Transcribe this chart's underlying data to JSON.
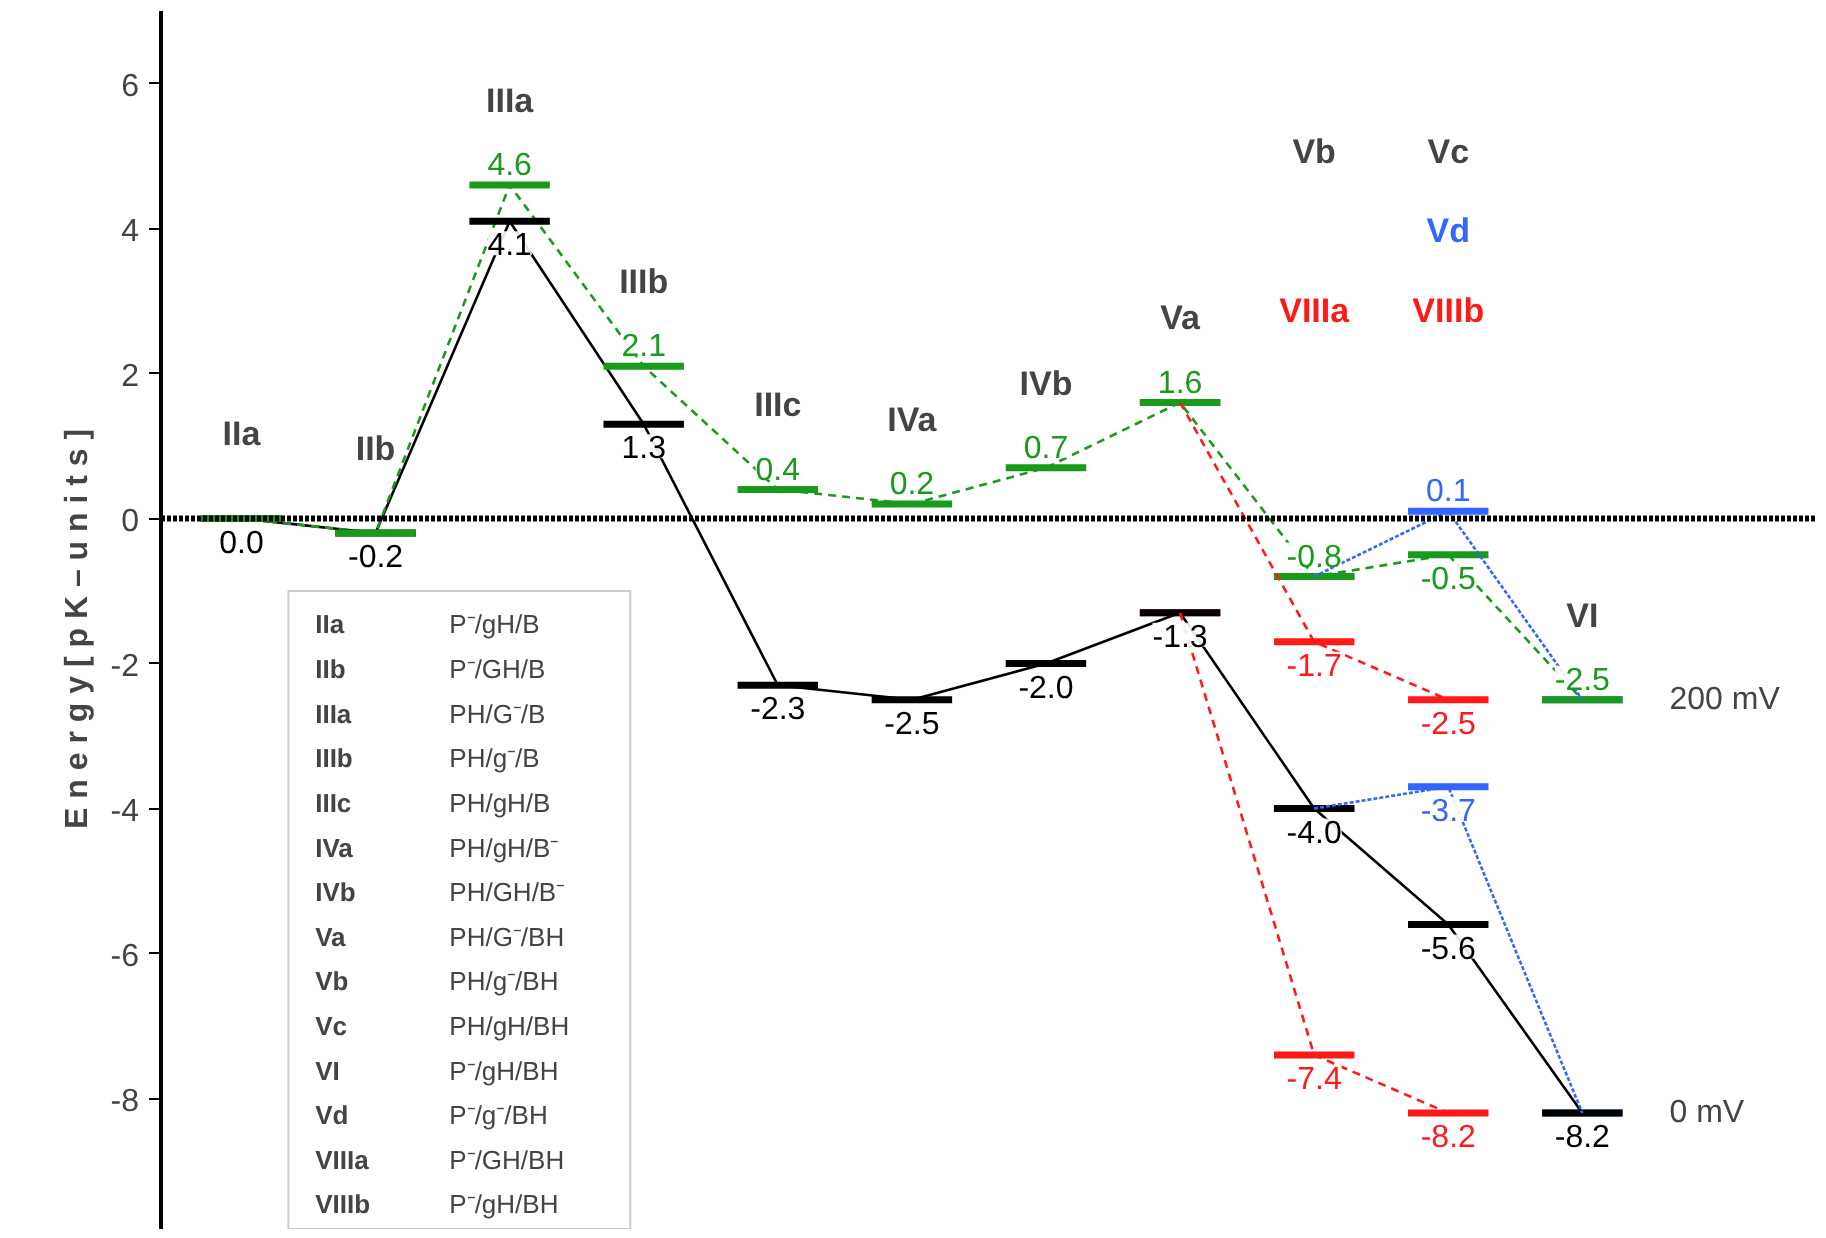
{
  "chart_data": {
    "type": "line",
    "ylabel": "E n e r g y   [ p K – u n i t s ]",
    "categories": [
      "IIa",
      "IIb",
      "IIIa",
      "IIIb",
      "IIIc",
      "IVa",
      "IVb",
      "Va",
      "Vb",
      "Vc",
      "VI"
    ],
    "series": [
      {
        "name": "200 mV",
        "color": "#1a9a1a",
        "line_style": "dashed",
        "values": [
          0.0,
          -0.2,
          4.6,
          2.1,
          0.4,
          0.2,
          0.7,
          1.6,
          -0.8,
          -0.5,
          -2.5
        ],
        "value_labels": [
          null,
          null,
          "4.6",
          "2.1",
          "0.4",
          "0.2",
          "0.7",
          "1.6",
          "-0.8",
          "-0.5",
          "-2.5"
        ]
      },
      {
        "name": "0 mV",
        "color": "#000000",
        "line_style": "solid",
        "values": [
          0.0,
          -0.2,
          4.1,
          1.3,
          -2.3,
          -2.5,
          -2.0,
          -1.3,
          -4.0,
          -5.6,
          -8.2
        ],
        "value_labels": [
          "0.0",
          "-0.2",
          "4.1",
          "1.3",
          "-2.3",
          "-2.5",
          "-2.0",
          "-1.3",
          "-4.0",
          "-5.6",
          "-8.2"
        ]
      },
      {
        "color": "#3366ff",
        "line_style": "dotted",
        "values": [
          null,
          null,
          null,
          null,
          null,
          null,
          null,
          null,
          -0.8,
          0.1,
          -2.5
        ],
        "value_labels": [
          null,
          null,
          null,
          null,
          null,
          null,
          null,
          null,
          null,
          "0.1",
          null
        ]
      },
      {
        "color": "#3366ff",
        "line_style": "dotted",
        "values": [
          null,
          null,
          null,
          null,
          null,
          null,
          null,
          null,
          -4.0,
          -3.7,
          -8.2
        ],
        "value_labels": [
          null,
          null,
          null,
          null,
          null,
          null,
          null,
          null,
          null,
          "-3.7",
          null
        ]
      },
      {
        "color": "#ff1a1a",
        "line_style": "dashed",
        "values": [
          null,
          null,
          null,
          null,
          null,
          null,
          null,
          1.6,
          -1.7,
          -2.5,
          null
        ],
        "value_labels": [
          null,
          null,
          null,
          null,
          null,
          null,
          null,
          null,
          "-1.7",
          "-2.5",
          null
        ]
      },
      {
        "color": "#ff1a1a",
        "line_style": "dashed",
        "values": [
          null,
          null,
          null,
          null,
          null,
          null,
          null,
          -1.3,
          -7.4,
          -8.2,
          null
        ],
        "value_labels": [
          null,
          null,
          null,
          null,
          null,
          null,
          null,
          null,
          "-7.4",
          "-8.2",
          null
        ]
      }
    ],
    "ylim": [
      -9.8,
      7
    ],
    "yticks": [
      -8,
      -6,
      -4,
      -2,
      0,
      2,
      4,
      6
    ],
    "grid": false,
    "tick_labels": "y",
    "ref_lines": [
      {
        "axis": "y",
        "value": 0,
        "color": "#000000",
        "line_style": "dotted"
      }
    ],
    "legend": "right",
    "annotations": [
      "Vd",
      "VIIIa",
      "VIIIb",
      "IIa P⁻/gH/B",
      "IIb P⁻/GH/B",
      "IIIa PH/G⁻/B",
      "IIIb PH/g⁻/B",
      "IIIc PH/gH/B",
      "IVa PH/gH/B⁻",
      "IVb PH/GH/B⁻",
      "Va PH/G⁻/BH",
      "Vb PH/g⁻/BH",
      "Vc PH/gH/BH",
      "VI P⁻/gH/BH",
      "Vd P⁻/g⁻/BH",
      "VIIIa P⁻/GH/BH",
      "VIIIb P⁻/gH/BH"
    ]
  }
}
